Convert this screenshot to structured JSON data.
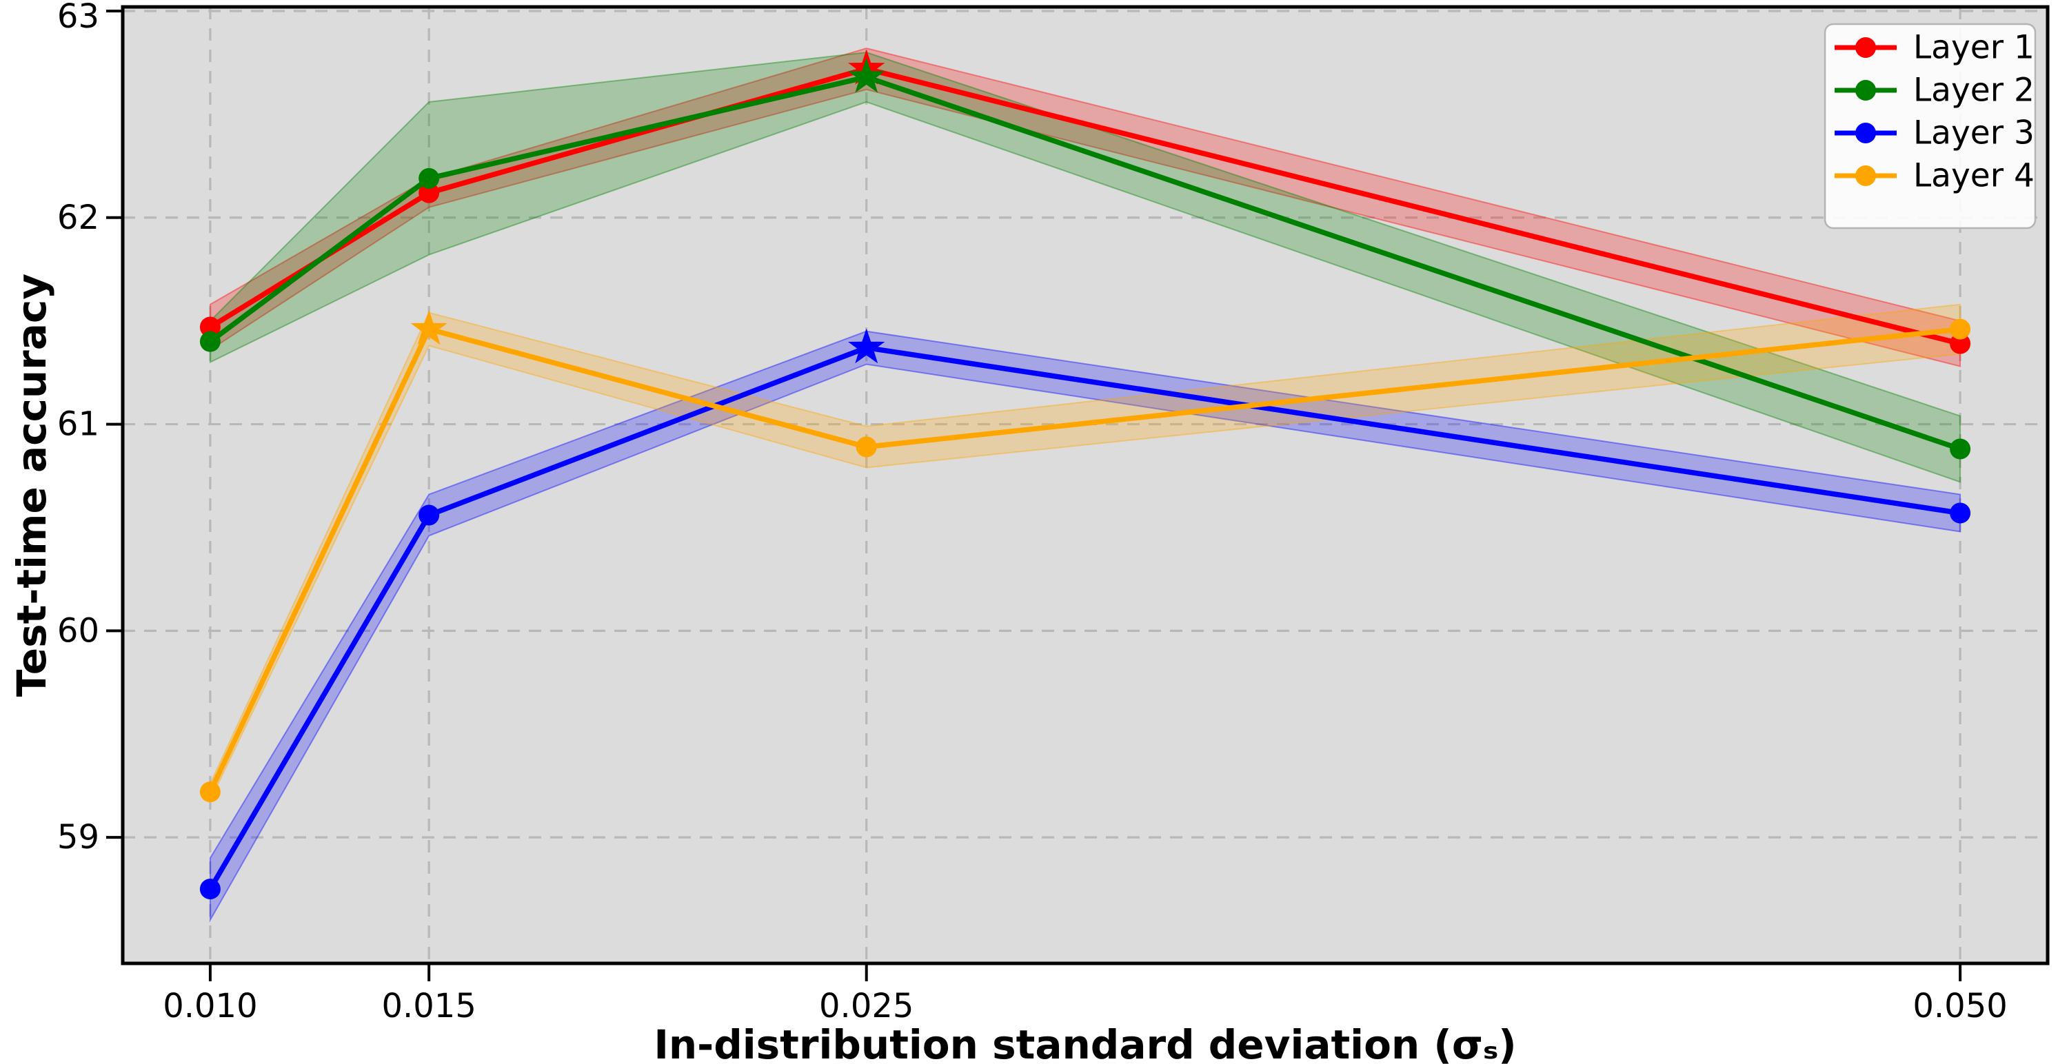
{
  "chart_data": {
    "type": "line",
    "title": "",
    "xlabel": "In-distribution standard deviation (σₛ)",
    "ylabel": "Test-time accuracy",
    "x": [
      0.01,
      0.015,
      0.025,
      0.05
    ],
    "x_tick_labels": [
      "0.010",
      "0.015",
      "0.025",
      "0.050"
    ],
    "y_ticks": [
      59,
      60,
      61,
      62,
      63
    ],
    "y_tick_labels": [
      "59",
      "60",
      "61",
      "62",
      "63"
    ],
    "xlim": [
      0.008,
      0.052
    ],
    "ylim": [
      58.39,
      63.02
    ],
    "grid": true,
    "grid_style": "dashed",
    "grid_color": "#b8b8b8",
    "plot_background": "#dcdcdc",
    "figure_background": "#ffffff",
    "band_alpha": 0.25,
    "legend": {
      "position": "upper right",
      "labels": [
        "Layer 1",
        "Layer 2",
        "Layer 3",
        "Layer 4"
      ]
    },
    "series": [
      {
        "name": "Layer 1",
        "color": "#ff0000",
        "marker": "circle",
        "best_marker": "star",
        "best_index": 2,
        "values": [
          61.47,
          62.12,
          62.72,
          61.39
        ],
        "std": [
          0.11,
          0.07,
          0.1,
          0.11
        ]
      },
      {
        "name": "Layer 2",
        "color": "#008000",
        "marker": "circle",
        "best_marker": "star",
        "best_index": 2,
        "values": [
          61.4,
          62.19,
          62.68,
          60.88
        ],
        "std": [
          0.1,
          0.37,
          0.12,
          0.16
        ]
      },
      {
        "name": "Layer 3",
        "color": "#0000ff",
        "marker": "circle",
        "best_marker": "star",
        "best_index": 2,
        "values": [
          58.75,
          60.56,
          61.37,
          60.57
        ],
        "std": [
          0.15,
          0.1,
          0.08,
          0.09
        ]
      },
      {
        "name": "Layer 4",
        "color": "#ffa500",
        "marker": "circle",
        "best_marker": "star",
        "best_index": 1,
        "values": [
          59.22,
          61.46,
          60.89,
          61.46
        ],
        "std": [
          0.04,
          0.08,
          0.1,
          0.12
        ]
      }
    ]
  }
}
